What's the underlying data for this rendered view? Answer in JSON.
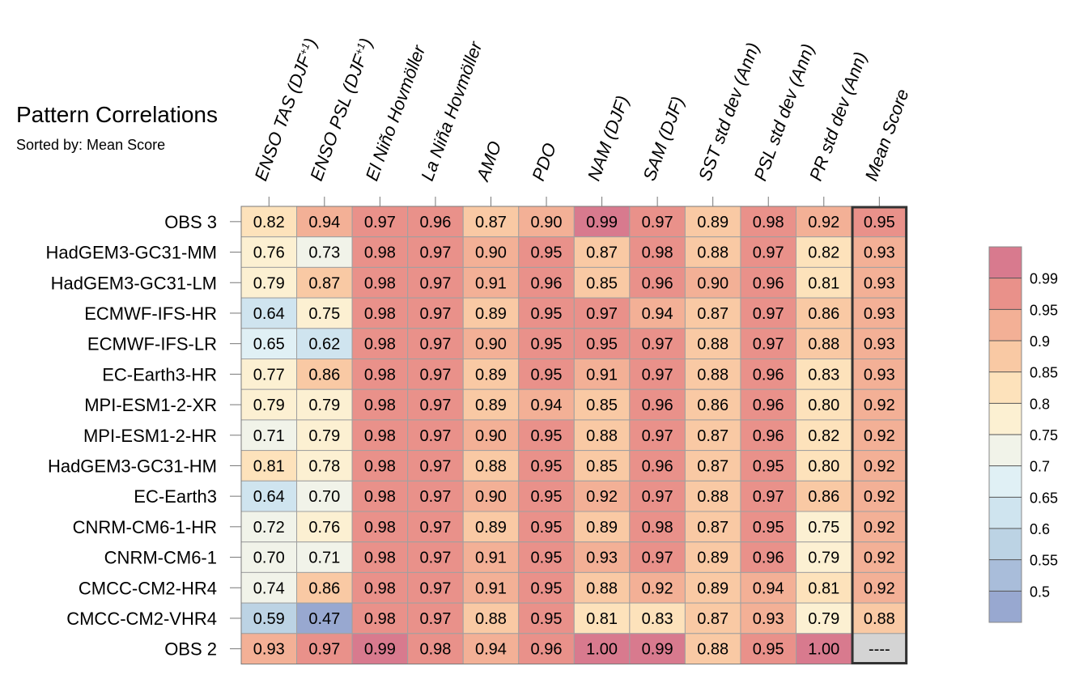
{
  "header": {
    "title": "Pattern Correlations",
    "subtitle": "Sorted by: Mean Score"
  },
  "chart_data": {
    "type": "heatmap",
    "columns": [
      "ENSO TAS (DJF+1)",
      "ENSO PSL (DJF+1)",
      "El Niño Hovmöller",
      "La Niña Hovmöller",
      "AMO",
      "PDO",
      "NAM (DJF)",
      "SAM (DJF)",
      "SST std dev (Ann)",
      "PSL std dev (Ann)",
      "PR std dev (Ann)",
      "Mean Score"
    ],
    "rows": [
      "OBS 3",
      "HadGEM3-GC31-MM",
      "HadGEM3-GC31-LM",
      "ECMWF-IFS-HR",
      "ECMWF-IFS-LR",
      "EC-Earth3-HR",
      "MPI-ESM1-2-XR",
      "MPI-ESM1-2-HR",
      "HadGEM3-GC31-HM",
      "EC-Earth3",
      "CNRM-CM6-1-HR",
      "CNRM-CM6-1",
      "CMCC-CM2-HR4",
      "CMCC-CM2-VHR4",
      "OBS 2"
    ],
    "values": [
      [
        0.82,
        0.94,
        0.97,
        0.96,
        0.87,
        0.9,
        0.99,
        0.97,
        0.89,
        0.98,
        0.92,
        0.95
      ],
      [
        0.76,
        0.73,
        0.98,
        0.97,
        0.9,
        0.95,
        0.87,
        0.98,
        0.88,
        0.97,
        0.82,
        0.93
      ],
      [
        0.79,
        0.87,
        0.98,
        0.97,
        0.91,
        0.96,
        0.85,
        0.96,
        0.9,
        0.96,
        0.81,
        0.93
      ],
      [
        0.64,
        0.75,
        0.98,
        0.97,
        0.89,
        0.95,
        0.97,
        0.94,
        0.87,
        0.97,
        0.86,
        0.93
      ],
      [
        0.65,
        0.62,
        0.98,
        0.97,
        0.9,
        0.95,
        0.95,
        0.97,
        0.88,
        0.97,
        0.88,
        0.93
      ],
      [
        0.77,
        0.86,
        0.98,
        0.97,
        0.89,
        0.95,
        0.91,
        0.97,
        0.88,
        0.96,
        0.83,
        0.93
      ],
      [
        0.79,
        0.79,
        0.98,
        0.97,
        0.89,
        0.94,
        0.85,
        0.96,
        0.86,
        0.96,
        0.8,
        0.92
      ],
      [
        0.71,
        0.79,
        0.98,
        0.97,
        0.9,
        0.95,
        0.88,
        0.97,
        0.87,
        0.96,
        0.82,
        0.92
      ],
      [
        0.81,
        0.78,
        0.98,
        0.97,
        0.88,
        0.95,
        0.85,
        0.96,
        0.87,
        0.95,
        0.8,
        0.92
      ],
      [
        0.64,
        0.7,
        0.98,
        0.97,
        0.9,
        0.95,
        0.92,
        0.97,
        0.88,
        0.97,
        0.86,
        0.92
      ],
      [
        0.72,
        0.76,
        0.98,
        0.97,
        0.89,
        0.95,
        0.89,
        0.98,
        0.87,
        0.95,
        0.75,
        0.92
      ],
      [
        0.7,
        0.71,
        0.98,
        0.97,
        0.91,
        0.95,
        0.93,
        0.97,
        0.89,
        0.96,
        0.79,
        0.92
      ],
      [
        0.74,
        0.86,
        0.98,
        0.97,
        0.91,
        0.95,
        0.88,
        0.92,
        0.89,
        0.94,
        0.81,
        0.92
      ],
      [
        0.59,
        0.47,
        0.98,
        0.97,
        0.88,
        0.95,
        0.81,
        0.83,
        0.87,
        0.93,
        0.79,
        0.88
      ],
      [
        0.93,
        0.97,
        0.99,
        0.98,
        0.94,
        0.96,
        1.0,
        0.99,
        0.88,
        0.95,
        1.0,
        null
      ]
    ],
    "missing_label": "----",
    "missing_color": "#d4d4d4",
    "highlighted_column": "Mean Score",
    "colorbar": {
      "levels": [
        0.5,
        0.55,
        0.6,
        0.65,
        0.7,
        0.75,
        0.8,
        0.85,
        0.9,
        0.95,
        0.99
      ],
      "tick_labels": [
        "0.5",
        "0.55",
        "0.6",
        "0.65",
        "0.7",
        "0.75",
        "0.8",
        "0.85",
        "0.9",
        "0.95",
        "0.99"
      ],
      "colors": [
        "#98a8d0",
        "#a9bdda",
        "#bcd3e4",
        "#cfe4ef",
        "#e0f0f5",
        "#f1f3e9",
        "#fcf0d2",
        "#fde2bb",
        "#f9c9a4",
        "#f3b096",
        "#e9918a",
        "#d87a8e"
      ],
      "placement": "right"
    }
  }
}
